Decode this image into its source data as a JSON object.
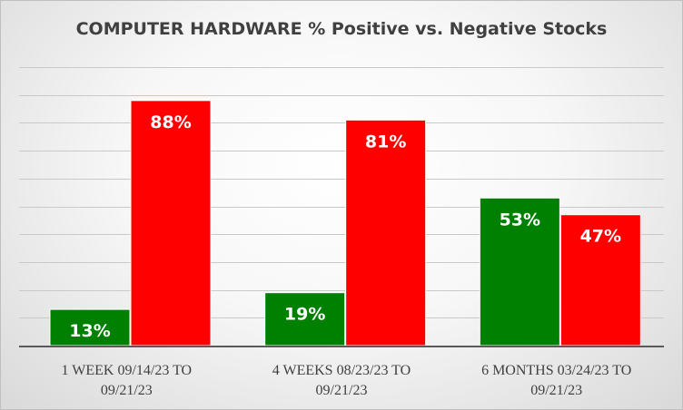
{
  "chart_data": {
    "type": "bar",
    "title": "COMPUTER HARDWARE % Positive vs. Negative Stocks",
    "categories": [
      [
        "1 WEEK 09/14/23 TO",
        "09/21/23"
      ],
      [
        "4 WEEKS 08/23/23 TO",
        "09/21/23"
      ],
      [
        "6 MONTHS 03/24/23 TO",
        "09/21/23"
      ]
    ],
    "series": [
      {
        "values": [
          13,
          19,
          53
        ],
        "labels": [
          "13%",
          "19%",
          "53%"
        ],
        "color": "#008000"
      },
      {
        "values": [
          88,
          81,
          47
        ],
        "labels": [
          "88%",
          "81%",
          "47%"
        ],
        "color": "#ff0000"
      }
    ],
    "xlabel": "",
    "ylabel": "",
    "ylim": [
      0,
      100
    ],
    "grid": true,
    "legend": "none"
  }
}
